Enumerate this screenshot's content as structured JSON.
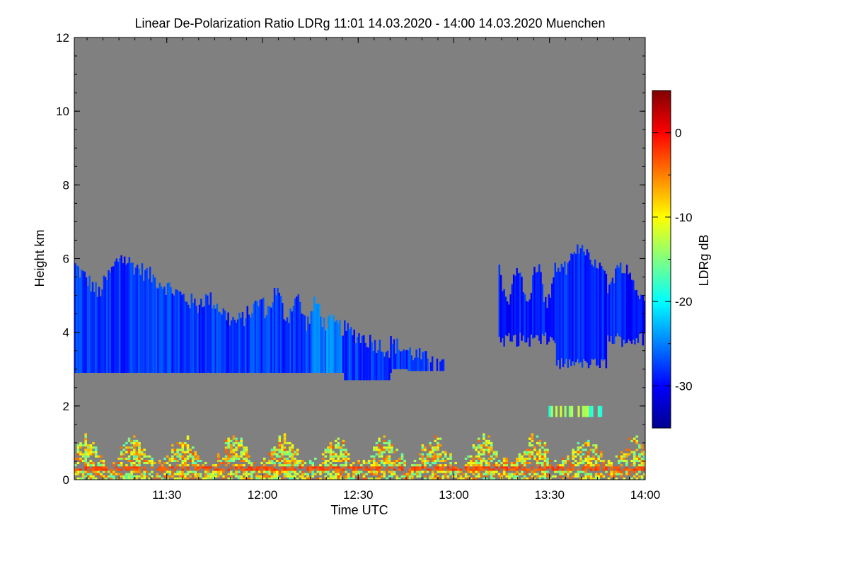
{
  "chart_data": {
    "type": "heatmap",
    "title": "Linear De-Polarization Ratio LDRg   11:01 14.03.2020 - 14:00 14.03.2020 Muenchen",
    "xlabel": "Time UTC",
    "ylabel": "Height km",
    "colorbar_label": "LDRg dB",
    "x_range_minutes": [
      661,
      840
    ],
    "y_range_km": [
      0,
      12
    ],
    "x_ticks": [
      {
        "label": "11:30",
        "value": 690
      },
      {
        "label": "12:00",
        "value": 720
      },
      {
        "label": "12:30",
        "value": 750
      },
      {
        "label": "13:00",
        "value": 780
      },
      {
        "label": "13:30",
        "value": 810
      },
      {
        "label": "14:00",
        "value": 840
      }
    ],
    "y_ticks": [
      {
        "label": "0",
        "value": 0
      },
      {
        "label": "2",
        "value": 2
      },
      {
        "label": "4",
        "value": 4
      },
      {
        "label": "6",
        "value": 6
      },
      {
        "label": "8",
        "value": 8
      },
      {
        "label": "10",
        "value": 10
      },
      {
        "label": "12",
        "value": 12
      }
    ],
    "colorbar_range": [
      -35,
      5
    ],
    "colorbar_ticks": [
      {
        "label": "0",
        "value": 0
      },
      {
        "label": "-10",
        "value": -10
      },
      {
        "label": "-20",
        "value": -20
      },
      {
        "label": "-30",
        "value": -30
      }
    ],
    "background_color": "#808080",
    "cloud_layers": [
      {
        "name": "aerosol layer near ground",
        "time_start": 661,
        "time_end": 840,
        "base_km": 0.0,
        "top_km": 1.3,
        "ldr_db": -10
      },
      {
        "name": "mid-level cloud 1",
        "time_start": 661,
        "time_end": 781,
        "base_km": 2.7,
        "top_km": 6.2,
        "ldr_db": -28
      },
      {
        "name": "mid-level cloud 2",
        "time_start": 794,
        "time_end": 840,
        "base_km": 2.9,
        "top_km": 6.3,
        "ldr_db": -29
      },
      {
        "name": "thin layer",
        "time_start": 809,
        "time_end": 826,
        "base_km": 1.7,
        "top_km": 2.0,
        "ldr_db": -15
      }
    ]
  }
}
